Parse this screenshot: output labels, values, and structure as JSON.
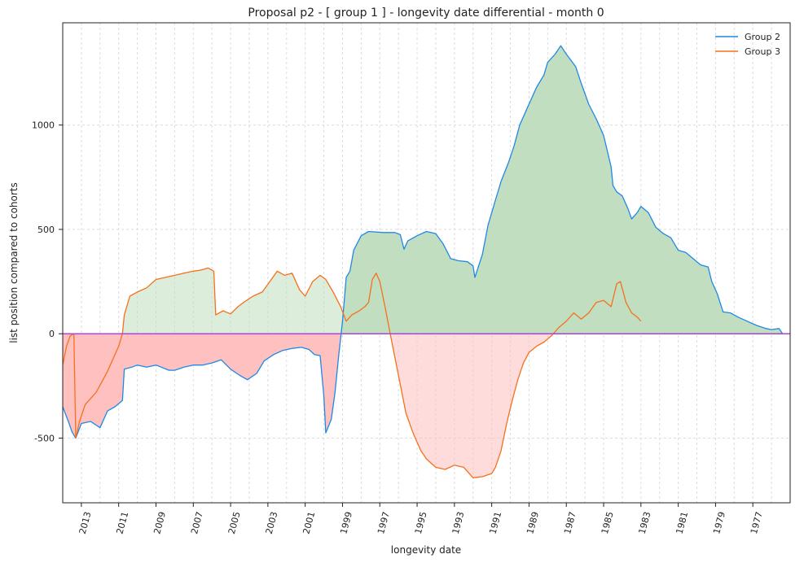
{
  "chart_data": {
    "type": "line",
    "title": "Proposal p2 - [ group 1 ] - longevity date differential - month 0",
    "xlabel": "longevity date",
    "ylabel": "list position compared to cohorts",
    "x_reversed": true,
    "xlim": [
      2014.0,
      1975.0
    ],
    "ylim": [
      -810,
      1490
    ],
    "x_ticks": [
      "2013",
      "2011",
      "2009",
      "2007",
      "2005",
      "2003",
      "2001",
      "1999",
      "1997",
      "1995",
      "1993",
      "1991",
      "1989",
      "1987",
      "1985",
      "1983",
      "1981",
      "1979",
      "1977"
    ],
    "y_ticks": [
      -500,
      0,
      500,
      1000
    ],
    "grid": true,
    "legend_position": "top-right",
    "series": [
      {
        "name": "Group 2",
        "color": "#1f88e5",
        "points": [
          [
            2014.0,
            -350
          ],
          [
            2013.7,
            -420
          ],
          [
            2013.5,
            -470
          ],
          [
            2013.3,
            -500
          ],
          [
            2013.0,
            -430
          ],
          [
            2012.5,
            -420
          ],
          [
            2012.0,
            -450
          ],
          [
            2011.6,
            -370
          ],
          [
            2011.2,
            -350
          ],
          [
            2010.8,
            -320
          ],
          [
            2010.7,
            -170
          ],
          [
            2010.3,
            -160
          ],
          [
            2010.0,
            -150
          ],
          [
            2009.5,
            -160
          ],
          [
            2009.0,
            -150
          ],
          [
            2008.3,
            -175
          ],
          [
            2008.0,
            -175
          ],
          [
            2007.5,
            -160
          ],
          [
            2007.0,
            -150
          ],
          [
            2006.5,
            -150
          ],
          [
            2006.0,
            -140
          ],
          [
            2005.5,
            -125
          ],
          [
            2005.0,
            -170
          ],
          [
            2004.5,
            -200
          ],
          [
            2004.1,
            -220
          ],
          [
            2003.6,
            -190
          ],
          [
            2003.2,
            -130
          ],
          [
            2002.7,
            -100
          ],
          [
            2002.2,
            -80
          ],
          [
            2001.7,
            -70
          ],
          [
            2001.2,
            -65
          ],
          [
            2000.8,
            -75
          ],
          [
            2000.5,
            -100
          ],
          [
            2000.2,
            -105
          ],
          [
            2000.0,
            -300
          ],
          [
            1999.9,
            -475
          ],
          [
            1999.6,
            -410
          ],
          [
            1999.4,
            -280
          ],
          [
            1999.2,
            -100
          ],
          [
            1999.0,
            60
          ],
          [
            1998.8,
            270
          ],
          [
            1998.6,
            300
          ],
          [
            1998.4,
            400
          ],
          [
            1998.0,
            470
          ],
          [
            1997.6,
            490
          ],
          [
            1996.8,
            485
          ],
          [
            1996.2,
            485
          ],
          [
            1995.9,
            475
          ],
          [
            1995.7,
            405
          ],
          [
            1995.5,
            445
          ],
          [
            1995.0,
            470
          ],
          [
            1994.5,
            490
          ],
          [
            1994.0,
            480
          ],
          [
            1993.6,
            430
          ],
          [
            1993.2,
            360
          ],
          [
            1992.8,
            350
          ],
          [
            1992.3,
            345
          ],
          [
            1992.0,
            325
          ],
          [
            1991.9,
            270
          ],
          [
            1991.5,
            380
          ],
          [
            1991.2,
            520
          ],
          [
            1990.8,
            640
          ],
          [
            1990.5,
            730
          ],
          [
            1990.1,
            820
          ],
          [
            1989.8,
            900
          ],
          [
            1989.5,
            1000
          ],
          [
            1989.0,
            1100
          ],
          [
            1988.6,
            1180
          ],
          [
            1988.2,
            1240
          ],
          [
            1988.0,
            1300
          ],
          [
            1987.6,
            1340
          ],
          [
            1987.3,
            1380
          ],
          [
            1987.0,
            1340
          ],
          [
            1986.5,
            1280
          ],
          [
            1986.2,
            1200
          ],
          [
            1985.8,
            1100
          ],
          [
            1985.4,
            1030
          ],
          [
            1985.0,
            950
          ],
          [
            1984.6,
            800
          ],
          [
            1984.5,
            710
          ],
          [
            1984.3,
            680
          ],
          [
            1984.0,
            660
          ],
          [
            1983.7,
            600
          ],
          [
            1983.5,
            550
          ],
          [
            1983.2,
            580
          ],
          [
            1983.0,
            610
          ],
          [
            1982.6,
            580
          ],
          [
            1982.2,
            510
          ],
          [
            1981.8,
            480
          ],
          [
            1981.4,
            460
          ],
          [
            1981.0,
            400
          ],
          [
            1980.6,
            390
          ],
          [
            1980.2,
            360
          ],
          [
            1979.8,
            330
          ],
          [
            1979.4,
            320
          ],
          [
            1979.2,
            250
          ],
          [
            1978.9,
            190
          ],
          [
            1978.6,
            105
          ],
          [
            1978.2,
            100
          ],
          [
            1977.8,
            80
          ],
          [
            1977.3,
            60
          ],
          [
            1976.8,
            40
          ],
          [
            1976.3,
            25
          ],
          [
            1976.0,
            20
          ],
          [
            1975.6,
            25
          ],
          [
            1975.4,
            0
          ],
          [
            1975.0,
            0
          ]
        ]
      },
      {
        "name": "Group 3",
        "color": "#f4711c",
        "points": [
          [
            2014.0,
            -150
          ],
          [
            2013.8,
            -60
          ],
          [
            2013.6,
            -10
          ],
          [
            2013.4,
            0
          ],
          [
            2013.3,
            -500
          ],
          [
            2013.1,
            -420
          ],
          [
            2012.8,
            -340
          ],
          [
            2012.5,
            -310
          ],
          [
            2012.2,
            -280
          ],
          [
            2011.9,
            -230
          ],
          [
            2011.6,
            -180
          ],
          [
            2011.3,
            -120
          ],
          [
            2011.0,
            -60
          ],
          [
            2010.8,
            0
          ],
          [
            2010.7,
            90
          ],
          [
            2010.4,
            180
          ],
          [
            2010.0,
            200
          ],
          [
            2009.5,
            220
          ],
          [
            2009.0,
            260
          ],
          [
            2008.5,
            270
          ],
          [
            2008.0,
            280
          ],
          [
            2007.5,
            290
          ],
          [
            2007.0,
            300
          ],
          [
            2006.6,
            305
          ],
          [
            2006.2,
            315
          ],
          [
            2005.9,
            300
          ],
          [
            2005.8,
            90
          ],
          [
            2005.4,
            110
          ],
          [
            2005.0,
            95
          ],
          [
            2004.6,
            130
          ],
          [
            2004.3,
            150
          ],
          [
            2003.8,
            180
          ],
          [
            2003.3,
            200
          ],
          [
            2002.9,
            250
          ],
          [
            2002.5,
            300
          ],
          [
            2002.1,
            280
          ],
          [
            2001.7,
            290
          ],
          [
            2001.3,
            210
          ],
          [
            2001.0,
            180
          ],
          [
            2000.6,
            250
          ],
          [
            2000.2,
            280
          ],
          [
            1999.9,
            260
          ],
          [
            1999.5,
            200
          ],
          [
            1999.1,
            130
          ],
          [
            1998.8,
            60
          ],
          [
            1998.5,
            90
          ],
          [
            1998.1,
            110
          ],
          [
            1997.8,
            130
          ],
          [
            1997.6,
            150
          ],
          [
            1997.4,
            260
          ],
          [
            1997.2,
            290
          ],
          [
            1997.0,
            250
          ],
          [
            1996.7,
            120
          ],
          [
            1996.4,
            -20
          ],
          [
            1996.0,
            -200
          ],
          [
            1995.6,
            -380
          ],
          [
            1995.2,
            -480
          ],
          [
            1994.8,
            -560
          ],
          [
            1994.5,
            -600
          ],
          [
            1994.0,
            -640
          ],
          [
            1993.5,
            -650
          ],
          [
            1993.0,
            -630
          ],
          [
            1992.5,
            -640
          ],
          [
            1992.0,
            -690
          ],
          [
            1991.5,
            -685
          ],
          [
            1991.0,
            -670
          ],
          [
            1990.8,
            -640
          ],
          [
            1990.5,
            -560
          ],
          [
            1990.2,
            -430
          ],
          [
            1989.9,
            -320
          ],
          [
            1989.6,
            -220
          ],
          [
            1989.3,
            -140
          ],
          [
            1989.0,
            -90
          ],
          [
            1988.6,
            -60
          ],
          [
            1988.2,
            -40
          ],
          [
            1987.8,
            -10
          ],
          [
            1987.4,
            30
          ],
          [
            1987.0,
            60
          ],
          [
            1986.6,
            100
          ],
          [
            1986.2,
            70
          ],
          [
            1985.8,
            100
          ],
          [
            1985.4,
            150
          ],
          [
            1985.0,
            160
          ],
          [
            1984.6,
            130
          ],
          [
            1984.3,
            240
          ],
          [
            1984.1,
            250
          ],
          [
            1983.8,
            150
          ],
          [
            1983.5,
            100
          ],
          [
            1983.2,
            80
          ],
          [
            1983.0,
            60
          ]
        ]
      }
    ],
    "reference_line": {
      "y": 0,
      "color": "#b040e0"
    },
    "fill_positive_color": "#c1dfc0",
    "fill_negative_color": "#ffc0c0"
  }
}
